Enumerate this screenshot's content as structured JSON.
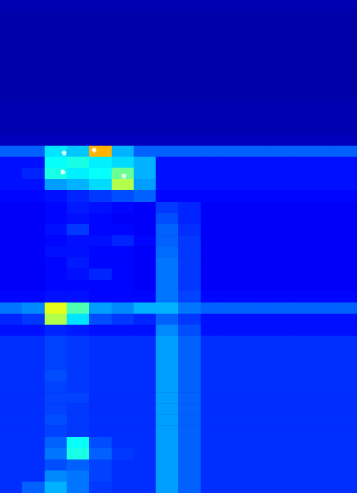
{
  "chart_data": {
    "type": "heatmap",
    "tick_labels": false,
    "color_range": [
      0,
      100
    ],
    "cells": [
      [
        5,
        5,
        5,
        5,
        5,
        5,
        5,
        5,
        5,
        5,
        5,
        5,
        5,
        5,
        5,
        5
      ],
      [
        4,
        4,
        4,
        4,
        4,
        4,
        4,
        4,
        4,
        4,
        4,
        4,
        4,
        4,
        4,
        4
      ],
      [
        4,
        4,
        4,
        4,
        4,
        4,
        4,
        4,
        4,
        4,
        4,
        4,
        4,
        4,
        4,
        4
      ],
      [
        4,
        4,
        4,
        4,
        4,
        4,
        4,
        4,
        4,
        4,
        4,
        4,
        4,
        4,
        4,
        4
      ],
      [
        4,
        4,
        4,
        4,
        4,
        4,
        4,
        4,
        4,
        4,
        4,
        4,
        4,
        4,
        4,
        4
      ],
      [
        4,
        4,
        4,
        4,
        4,
        4,
        4,
        4,
        4,
        4,
        4,
        4,
        4,
        4,
        4,
        4
      ],
      [
        4,
        4,
        4,
        4,
        4,
        4,
        4,
        4,
        4,
        4,
        4,
        4,
        4,
        4,
        4,
        4
      ],
      [
        4,
        4,
        4,
        4,
        4,
        4,
        4,
        4,
        4,
        4,
        4,
        4,
        4,
        4,
        4,
        4
      ],
      [
        4,
        4,
        4,
        4,
        4,
        4,
        4,
        4,
        4,
        4,
        4,
        4,
        4,
        4,
        4,
        4
      ],
      [
        5,
        5,
        5,
        5,
        5,
        5,
        5,
        5,
        5,
        5,
        5,
        5,
        5,
        5,
        5,
        5
      ],
      [
        5,
        5,
        5,
        5,
        5,
        5,
        5,
        5,
        5,
        5,
        5,
        5,
        5,
        5,
        5,
        5
      ],
      [
        5,
        5,
        5,
        5,
        5,
        5,
        5,
        5,
        5,
        5,
        5,
        5,
        5,
        5,
        5,
        5
      ],
      [
        6,
        6,
        6,
        6,
        6,
        6,
        6,
        6,
        6,
        6,
        6,
        6,
        6,
        6,
        6,
        6
      ],
      [
        22,
        22,
        35,
        32,
        70,
        30,
        22,
        22,
        22,
        22,
        22,
        22,
        22,
        22,
        22,
        22
      ],
      [
        14,
        14,
        38,
        40,
        36,
        34,
        30,
        14,
        14,
        14,
        14,
        14,
        14,
        14,
        14,
        14
      ],
      [
        14,
        16,
        40,
        36,
        38,
        48,
        30,
        14,
        14,
        14,
        14,
        14,
        14,
        14,
        14,
        14
      ],
      [
        14,
        14,
        28,
        30,
        34,
        55,
        28,
        14,
        14,
        14,
        14,
        14,
        14,
        14,
        14,
        14
      ],
      [
        13,
        13,
        14,
        16,
        18,
        20,
        22,
        13,
        13,
        13,
        13,
        13,
        13,
        13,
        13,
        13
      ],
      [
        12,
        12,
        13,
        15,
        14,
        13,
        12,
        18,
        16,
        12,
        12,
        12,
        12,
        12,
        12,
        12
      ],
      [
        12,
        12,
        13,
        14,
        13,
        12,
        12,
        20,
        16,
        12,
        12,
        12,
        12,
        12,
        12,
        12
      ],
      [
        12,
        12,
        14,
        18,
        13,
        13,
        12,
        22,
        17,
        12,
        12,
        12,
        12,
        12,
        12,
        12
      ],
      [
        12,
        12,
        13,
        14,
        14,
        16,
        13,
        22,
        18,
        12,
        12,
        12,
        12,
        12,
        12,
        12
      ],
      [
        12,
        12,
        14,
        14,
        13,
        13,
        12,
        23,
        18,
        12,
        12,
        12,
        12,
        12,
        12,
        12
      ],
      [
        12,
        12,
        13,
        15,
        13,
        13,
        12,
        24,
        18,
        12,
        12,
        12,
        12,
        12,
        12,
        12
      ],
      [
        12,
        12,
        13,
        14,
        16,
        13,
        12,
        24,
        18,
        12,
        12,
        12,
        12,
        12,
        12,
        12
      ],
      [
        12,
        12,
        13,
        13,
        13,
        13,
        12,
        24,
        18,
        12,
        12,
        12,
        12,
        12,
        12,
        12
      ],
      [
        13,
        13,
        14,
        14,
        13,
        13,
        13,
        24,
        19,
        13,
        13,
        13,
        13,
        13,
        13,
        13
      ],
      [
        24,
        26,
        60,
        45,
        28,
        26,
        30,
        30,
        24,
        22,
        22,
        22,
        22,
        22,
        22,
        22
      ],
      [
        16,
        18,
        55,
        35,
        20,
        18,
        16,
        22,
        18,
        14,
        14,
        14,
        14,
        14,
        14,
        14
      ],
      [
        14,
        14,
        16,
        15,
        14,
        14,
        14,
        26,
        20,
        14,
        14,
        14,
        14,
        14,
        14,
        14
      ],
      [
        17,
        17,
        19,
        18,
        17,
        17,
        17,
        28,
        22,
        17,
        17,
        17,
        17,
        17,
        17,
        17
      ],
      [
        17,
        17,
        19,
        18,
        17,
        17,
        17,
        28,
        22,
        17,
        17,
        17,
        17,
        17,
        17,
        17
      ],
      [
        17,
        17,
        19,
        18,
        17,
        17,
        17,
        28,
        22,
        17,
        17,
        17,
        17,
        17,
        17,
        17
      ],
      [
        17,
        17,
        20,
        18,
        17,
        17,
        17,
        28,
        22,
        17,
        17,
        17,
        17,
        17,
        17,
        17
      ],
      [
        17,
        17,
        19,
        18,
        17,
        17,
        17,
        28,
        22,
        17,
        17,
        17,
        17,
        17,
        17,
        17
      ],
      [
        17,
        17,
        19,
        19,
        17,
        17,
        17,
        28,
        22,
        17,
        17,
        17,
        17,
        17,
        17,
        17
      ],
      [
        17,
        17,
        19,
        18,
        17,
        17,
        17,
        28,
        22,
        17,
        17,
        17,
        17,
        17,
        17,
        17
      ],
      [
        17,
        17,
        20,
        18,
        17,
        17,
        17,
        28,
        22,
        17,
        17,
        17,
        17,
        17,
        17,
        17
      ],
      [
        17,
        17,
        19,
        18,
        17,
        17,
        17,
        28,
        22,
        17,
        17,
        17,
        17,
        17,
        17,
        17
      ],
      [
        17,
        17,
        22,
        38,
        20,
        17,
        17,
        28,
        22,
        17,
        17,
        17,
        17,
        17,
        17,
        17
      ],
      [
        17,
        17,
        24,
        40,
        22,
        18,
        17,
        28,
        22,
        17,
        17,
        17,
        17,
        17,
        17,
        17
      ],
      [
        17,
        17,
        20,
        22,
        19,
        17,
        17,
        28,
        22,
        17,
        17,
        17,
        17,
        17,
        17,
        17
      ],
      [
        17,
        17,
        26,
        24,
        19,
        17,
        17,
        28,
        22,
        17,
        17,
        17,
        17,
        17,
        17,
        17
      ],
      [
        17,
        22,
        30,
        24,
        18,
        17,
        17,
        28,
        22,
        17,
        17,
        17,
        17,
        17,
        17,
        17
      ]
    ],
    "points": {
      "x": [
        92,
        135,
        90,
        178
      ],
      "y": [
        219,
        215,
        247,
        252
      ],
      "color": "#ffffff"
    },
    "xlim": [
      0,
      512
    ],
    "ylim": [
      0,
      707
    ]
  }
}
